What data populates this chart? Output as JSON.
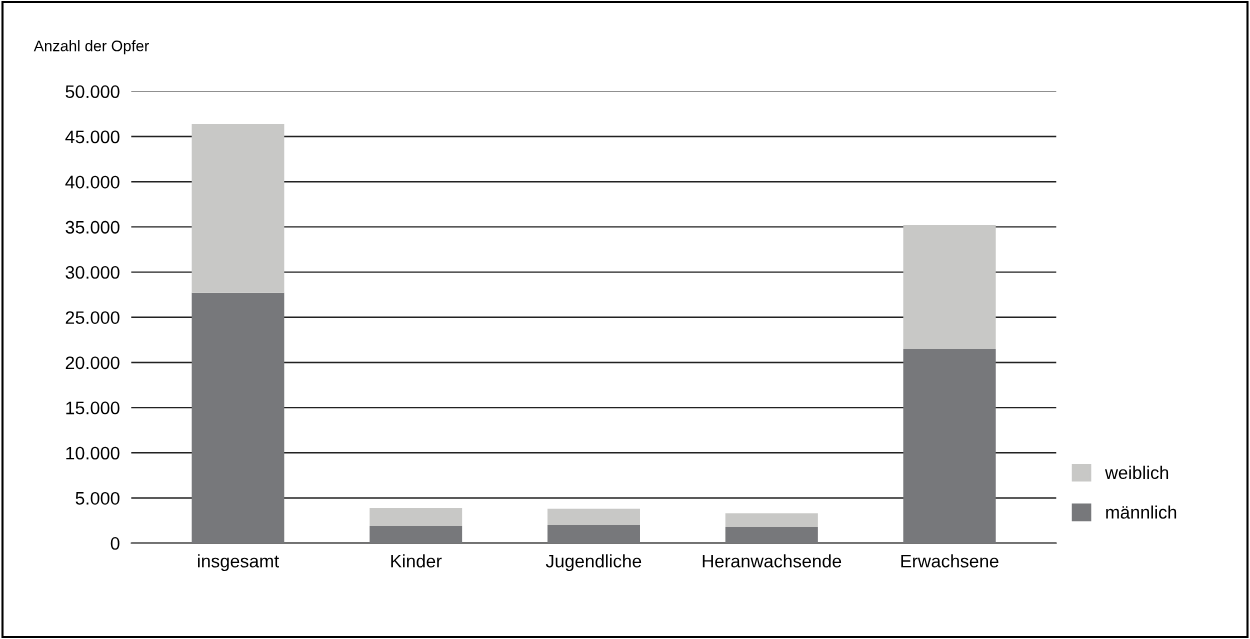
{
  "chart_data": {
    "type": "bar",
    "stacked": true,
    "ylabel": "Anzahl der Opfer",
    "categories": [
      "insgesamt",
      "Kinder",
      "Jugendliche",
      "Heranwachsende",
      "Erwachsene"
    ],
    "series": [
      {
        "name": "männlich",
        "color": "#77787b",
        "values": [
          27700,
          1900,
          2000,
          1800,
          21500
        ]
      },
      {
        "name": "weiblich",
        "color": "#c8c8c6",
        "values": [
          18700,
          2000,
          1800,
          1500,
          13700
        ]
      }
    ],
    "ylim": [
      0,
      50000
    ],
    "yticks": [
      {
        "value": 0,
        "label": "0"
      },
      {
        "value": 5000,
        "label": "5.000"
      },
      {
        "value": 10000,
        "label": "10.000"
      },
      {
        "value": 15000,
        "label": "15.000"
      },
      {
        "value": 20000,
        "label": "20.000"
      },
      {
        "value": 25000,
        "label": "25.000"
      },
      {
        "value": 30000,
        "label": "30.000"
      },
      {
        "value": 35000,
        "label": "35.000"
      },
      {
        "value": 40000,
        "label": "40.000"
      },
      {
        "value": 45000,
        "label": "45.000"
      },
      {
        "value": 50000,
        "label": "50.000"
      }
    ],
    "grid": "y",
    "legend": "right"
  }
}
